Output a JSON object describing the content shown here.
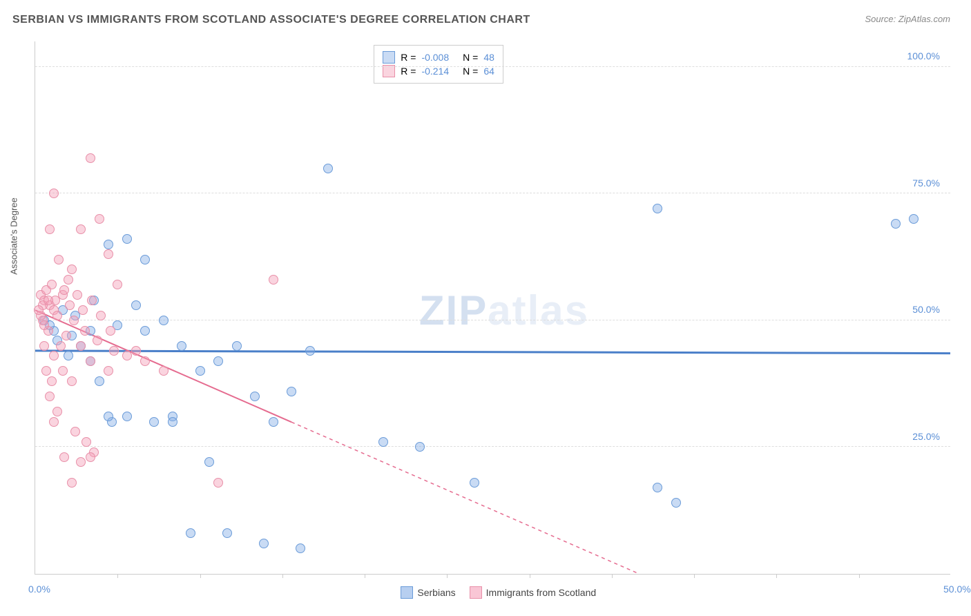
{
  "title": "SERBIAN VS IMMIGRANTS FROM SCOTLAND ASSOCIATE'S DEGREE CORRELATION CHART",
  "source": "Source: ZipAtlas.com",
  "watermark_a": "ZIP",
  "watermark_b": "atlas",
  "chart": {
    "type": "scatter",
    "ylabel": "Associate's Degree",
    "xlim": [
      0,
      50
    ],
    "ylim": [
      0,
      105
    ],
    "xticks": [
      0,
      50
    ],
    "xtick_labels": [
      "0.0%",
      "50.0%"
    ],
    "yticks": [
      25,
      50,
      75,
      100
    ],
    "ytick_labels": [
      "25.0%",
      "50.0%",
      "75.0%",
      "100.0%"
    ],
    "vtick_positions": [
      4.5,
      9,
      13.5,
      18,
      22.5,
      27,
      31.5,
      36,
      40.5,
      45
    ],
    "background_color": "#ffffff",
    "grid_color": "#dddddd",
    "axis_color": "#cccccc",
    "tick_label_color": "#5b8fd6",
    "series": [
      {
        "name": "Serbians",
        "fill": "rgba(135,175,230,0.45)",
        "stroke": "#6a9bd8",
        "r_label": "R = ",
        "r_value": "-0.008",
        "n_label": "N = ",
        "n_value": "48",
        "trend": {
          "x1": 0,
          "y1": 44,
          "x2": 50,
          "y2": 43.5,
          "solid_to_x": 50,
          "color": "#4a7fc9",
          "width": 3
        },
        "points": [
          [
            0.5,
            50
          ],
          [
            1,
            48
          ],
          [
            1.5,
            52
          ],
          [
            2,
            47
          ],
          [
            16,
            80
          ],
          [
            34,
            72
          ],
          [
            3,
            42
          ],
          [
            4,
            65
          ],
          [
            5,
            66
          ],
          [
            6,
            62
          ],
          [
            4.5,
            49
          ],
          [
            5.5,
            53
          ],
          [
            7,
            50
          ],
          [
            8,
            45
          ],
          [
            6.5,
            30
          ],
          [
            7.5,
            31
          ],
          [
            9,
            40
          ],
          [
            10,
            42
          ],
          [
            11,
            45
          ],
          [
            12,
            35
          ],
          [
            14,
            36
          ],
          [
            13,
            30
          ],
          [
            15,
            44
          ],
          [
            3.5,
            38
          ],
          [
            4.2,
            30
          ],
          [
            9.5,
            22
          ],
          [
            10.5,
            8
          ],
          [
            8.5,
            8
          ],
          [
            24,
            18
          ],
          [
            19,
            26
          ],
          [
            21,
            25
          ],
          [
            34,
            17
          ],
          [
            35,
            14
          ],
          [
            12.5,
            6
          ],
          [
            14.5,
            5
          ],
          [
            48,
            70
          ],
          [
            5,
            31
          ],
          [
            3,
            48
          ],
          [
            2.5,
            45
          ],
          [
            1.8,
            43
          ],
          [
            1.2,
            46
          ],
          [
            0.8,
            49
          ],
          [
            2.2,
            51
          ],
          [
            3.2,
            54
          ],
          [
            47,
            69
          ],
          [
            6,
            48
          ],
          [
            7.5,
            30
          ],
          [
            4,
            31
          ]
        ]
      },
      {
        "name": "Immigrants from Scotland",
        "fill": "rgba(245,160,185,0.45)",
        "stroke": "#e88fa8",
        "r_label": "R = ",
        "r_value": "-0.214",
        "n_label": "N = ",
        "n_value": "64",
        "trend": {
          "x1": 0,
          "y1": 52,
          "x2": 33,
          "y2": 0,
          "solid_to_x": 14,
          "color": "#e56b8f",
          "width": 2
        },
        "points": [
          [
            0.3,
            55
          ],
          [
            0.5,
            54
          ],
          [
            0.8,
            53
          ],
          [
            1,
            52
          ],
          [
            1.2,
            51
          ],
          [
            0.6,
            56
          ],
          [
            0.4,
            50
          ],
          [
            0.7,
            48
          ],
          [
            1.5,
            55
          ],
          [
            2,
            60
          ],
          [
            3,
            82
          ],
          [
            1,
            75
          ],
          [
            0.8,
            68
          ],
          [
            2.5,
            68
          ],
          [
            3.5,
            70
          ],
          [
            4,
            63
          ],
          [
            1.3,
            62
          ],
          [
            1.8,
            58
          ],
          [
            0.5,
            45
          ],
          [
            1,
            43
          ],
          [
            1.5,
            40
          ],
          [
            2,
            38
          ],
          [
            0.8,
            35
          ],
          [
            1.2,
            32
          ],
          [
            2.5,
            45
          ],
          [
            3,
            42
          ],
          [
            4,
            40
          ],
          [
            5,
            43
          ],
          [
            6,
            42
          ],
          [
            7,
            40
          ],
          [
            4.5,
            57
          ],
          [
            5.5,
            44
          ],
          [
            2.2,
            28
          ],
          [
            2.8,
            26
          ],
          [
            3.2,
            24
          ],
          [
            1.6,
            23
          ],
          [
            2,
            18
          ],
          [
            2.5,
            22
          ],
          [
            3,
            23
          ],
          [
            1,
            30
          ],
          [
            0.6,
            40
          ],
          [
            0.9,
            38
          ],
          [
            1.4,
            45
          ],
          [
            1.7,
            47
          ],
          [
            2.1,
            50
          ],
          [
            2.6,
            52
          ],
          [
            3.1,
            54
          ],
          [
            3.6,
            51
          ],
          [
            4.1,
            48
          ],
          [
            10,
            18
          ],
          [
            0.4,
            53
          ],
          [
            0.3,
            51
          ],
          [
            0.5,
            49
          ],
          [
            0.2,
            52
          ],
          [
            13,
            58
          ],
          [
            1.1,
            54
          ],
          [
            1.6,
            56
          ],
          [
            2.3,
            55
          ],
          [
            0.9,
            57
          ],
          [
            0.7,
            54
          ],
          [
            1.9,
            53
          ],
          [
            2.7,
            48
          ],
          [
            3.4,
            46
          ],
          [
            4.3,
            44
          ]
        ]
      }
    ]
  },
  "legend_bottom": [
    {
      "label": "Serbians",
      "fill": "rgba(135,175,230,0.6)",
      "stroke": "#6a9bd8"
    },
    {
      "label": "Immigrants from Scotland",
      "fill": "rgba(245,160,185,0.6)",
      "stroke": "#e88fa8"
    }
  ]
}
